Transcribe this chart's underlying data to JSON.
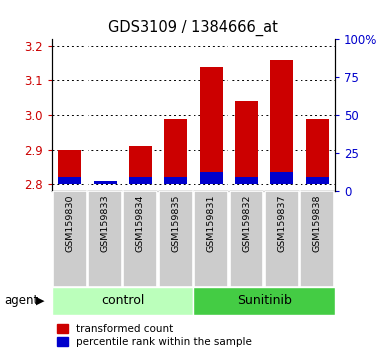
{
  "title": "GDS3109 / 1384666_at",
  "samples": [
    "GSM159830",
    "GSM159833",
    "GSM159834",
    "GSM159835",
    "GSM159831",
    "GSM159832",
    "GSM159837",
    "GSM159838"
  ],
  "groups": [
    "control",
    "control",
    "control",
    "control",
    "Sunitinib",
    "Sunitinib",
    "Sunitinib",
    "Sunitinib"
  ],
  "transformed_count": [
    2.9,
    2.8,
    2.91,
    2.99,
    3.14,
    3.04,
    3.16,
    2.99
  ],
  "percentile_rank": [
    5,
    2,
    5,
    5,
    8,
    5,
    8,
    5
  ],
  "bar_base": 2.8,
  "ylim_left": [
    2.78,
    3.22
  ],
  "yticks_left": [
    2.8,
    2.9,
    3.0,
    3.1,
    3.2
  ],
  "ylim_right": [
    0,
    100
  ],
  "yticks_right": [
    0,
    25,
    50,
    75,
    100
  ],
  "yticklabels_right": [
    "0",
    "25",
    "50",
    "75",
    "100%"
  ],
  "red_color": "#cc0000",
  "blue_color": "#0000cc",
  "control_color": "#bbffbb",
  "sunitinib_color": "#44cc44",
  "sample_bg_color": "#cccccc",
  "legend_items": [
    "transformed count",
    "percentile rank within the sample"
  ],
  "agent_label": "agent",
  "group_labels": [
    "control",
    "Sunitinib"
  ]
}
